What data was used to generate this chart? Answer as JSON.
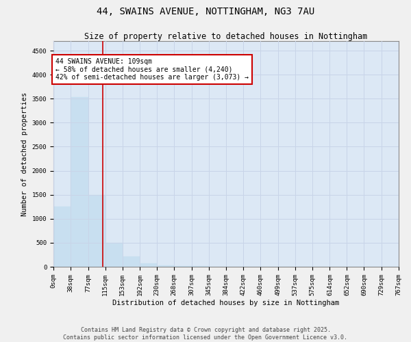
{
  "title_line1": "44, SWAINS AVENUE, NOTTINGHAM, NG3 7AU",
  "title_line2": "Size of property relative to detached houses in Nottingham",
  "xlabel": "Distribution of detached houses by size in Nottingham",
  "ylabel": "Number of detached properties",
  "bar_color": "#c8dff0",
  "bar_edge_color": "#a0c4dd",
  "vline_color": "#cc0000",
  "vline_x": 109,
  "annotation_text": "44 SWAINS AVENUE: 109sqm\n← 58% of detached houses are smaller (4,240)\n42% of semi-detached houses are larger (3,073) →",
  "annotation_box_color": "#cc0000",
  "annotation_fill": "#ffffff",
  "property_size": 109,
  "bin_edges": [
    0,
    38,
    77,
    115,
    153,
    192,
    230,
    268,
    307,
    345,
    384,
    422,
    460,
    499,
    537,
    575,
    614,
    652,
    690,
    729,
    767
  ],
  "bar_heights": [
    1250,
    3530,
    1500,
    500,
    220,
    75,
    35,
    18,
    10,
    6,
    4,
    3,
    2,
    2,
    1,
    1,
    1,
    1,
    0,
    0
  ],
  "ylim": [
    0,
    4700
  ],
  "yticks": [
    0,
    500,
    1000,
    1500,
    2000,
    2500,
    3000,
    3500,
    4000,
    4500
  ],
  "grid_color": "#c8d4e8",
  "bg_color": "#dce8f5",
  "fig_bg_color": "#f0f0f0",
  "footer_line1": "Contains HM Land Registry data © Crown copyright and database right 2025.",
  "footer_line2": "Contains public sector information licensed under the Open Government Licence v3.0.",
  "title_fontsize": 10,
  "subtitle_fontsize": 8.5,
  "label_fontsize": 7.5,
  "tick_fontsize": 6.5,
  "footer_fontsize": 6.0,
  "annot_fontsize": 7.0
}
